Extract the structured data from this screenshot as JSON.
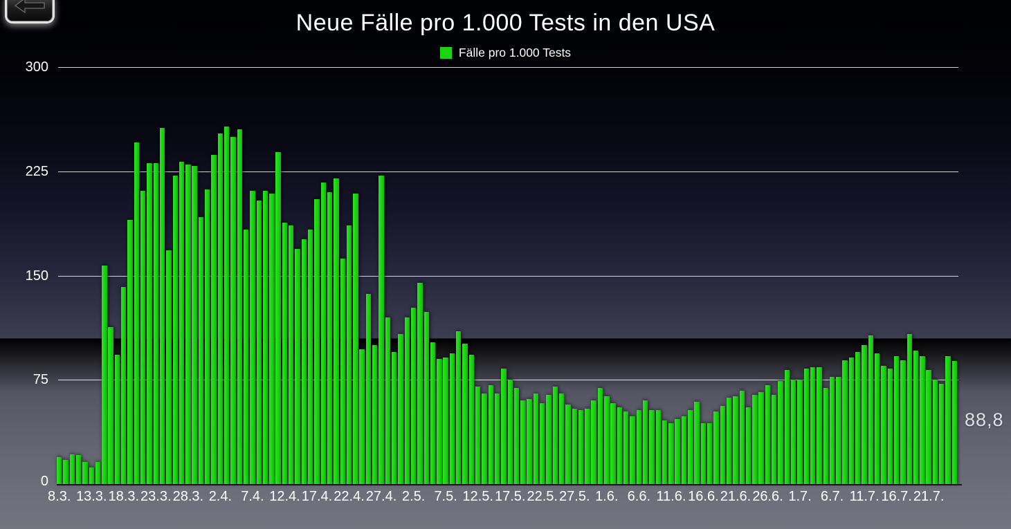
{
  "title": "Neue Fälle pro 1.000 Tests in den USA",
  "back_button": {
    "icon": "left-arrow"
  },
  "legend": {
    "label": "Fälle pro 1.000 Tests",
    "swatch_color": "#1cd414"
  },
  "annotation": {
    "last_value_label": "88,8"
  },
  "colors": {
    "bar": "#1cd414",
    "bar_light": "#2ee522",
    "bar_dark": "#10bd0a",
    "grid": "#ffffff",
    "text": "#ffffff",
    "background_top": "#000103",
    "background_bottom": "#74747f"
  },
  "chart_data": {
    "type": "bar",
    "title": "Neue Fälle pro 1.000 Tests in den USA",
    "legend_entries": [
      "Fälle pro 1.000 Tests"
    ],
    "xlabel": "",
    "ylabel": "",
    "ylim": [
      0,
      300
    ],
    "yticks": [
      0,
      75,
      150,
      225,
      300
    ],
    "grid": true,
    "legend_position": "top-center",
    "x_start_date": "8.3.",
    "x_tick_interval_days": 5,
    "x_tick_labels": [
      "8.3.",
      "13.3.",
      "18.3.",
      "23.3.",
      "28.3.",
      "2.4.",
      "7.4.",
      "12.4.",
      "17.4.",
      "22.4.",
      "27.4.",
      "2.5.",
      "7.5.",
      "12.5.",
      "17.5.",
      "22.5.",
      "27.5.",
      "1.6.",
      "6.6.",
      "11.6.",
      "16.6.",
      "21.6.",
      "26.6.",
      "1.7.",
      "6.7.",
      "11.7.",
      "16.7.",
      "21.7."
    ],
    "x_tick_indices": [
      0,
      5,
      10,
      15,
      20,
      25,
      30,
      35,
      40,
      45,
      50,
      55,
      60,
      65,
      70,
      75,
      80,
      85,
      90,
      95,
      100,
      105,
      110,
      115,
      120,
      125,
      130,
      135
    ],
    "values": [
      19.5,
      17.5,
      21.5,
      21,
      16,
      12,
      16,
      157,
      113,
      93,
      142,
      190,
      246,
      211,
      231,
      231,
      256,
      168,
      222,
      232,
      230,
      229,
      192,
      212,
      237,
      252,
      257,
      250,
      255,
      183,
      211,
      204,
      211,
      209,
      239,
      188,
      186,
      169,
      176,
      183,
      205,
      217,
      210,
      220,
      162,
      186,
      209,
      97,
      137,
      100,
      222,
      120,
      95,
      108,
      120,
      127,
      145,
      124,
      102,
      90,
      91,
      94,
      110,
      101,
      93,
      70,
      65,
      71,
      65,
      83,
      75,
      69,
      60,
      61,
      65,
      58,
      64,
      70,
      65,
      57,
      54,
      53,
      54,
      60,
      69,
      63,
      58,
      55,
      52,
      49,
      53,
      60,
      53,
      53,
      46,
      44,
      47,
      49,
      53,
      59,
      44,
      44,
      52,
      56,
      62,
      63,
      67,
      55,
      64,
      66,
      71,
      64,
      74,
      82,
      75,
      75,
      83,
      84,
      84,
      69,
      77,
      77,
      89,
      91,
      95,
      100,
      107,
      94,
      85,
      83,
      92,
      89,
      108,
      96,
      92,
      82,
      75,
      72,
      92,
      88.8
    ],
    "last_value_annotation": "88,8"
  }
}
